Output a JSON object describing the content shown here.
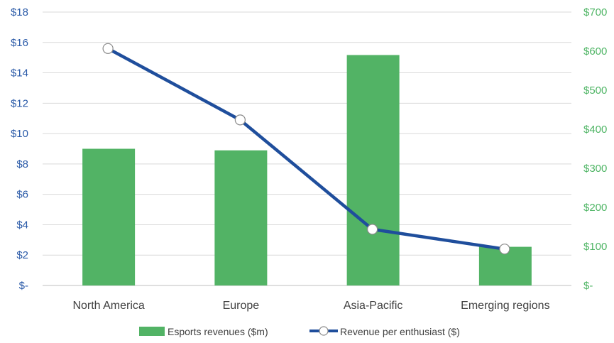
{
  "chart_data": {
    "type": "bar+line",
    "title": "",
    "categories": [
      "North America",
      "Europe",
      "Asia-Pacific",
      "Emerging regions"
    ],
    "series": [
      {
        "name": "Esports revenues ($m)",
        "type": "bar",
        "axis": "right",
        "color": "#52b365",
        "values": [
          350,
          346,
          590,
          99
        ]
      },
      {
        "name": "Revenue per enthusiast ($)",
        "type": "line",
        "axis": "left",
        "color": "#1f4e9c",
        "values": [
          15.6,
          10.9,
          3.7,
          2.4
        ]
      }
    ],
    "y_left": {
      "min": 0,
      "max": 18,
      "step": 2,
      "ticks": [
        "$-",
        "$2",
        "$4",
        "$6",
        "$8",
        "$10",
        "$12",
        "$14",
        "$16",
        "$18"
      ],
      "color": "#2a5aa8"
    },
    "y_right": {
      "min": 0,
      "max": 700,
      "step": 100,
      "ticks": [
        "$-",
        "$100",
        "$200",
        "$300",
        "$400",
        "$500",
        "$600",
        "$700"
      ],
      "color": "#4fb565"
    },
    "grid": true,
    "legend": {
      "position": "bottom"
    }
  }
}
